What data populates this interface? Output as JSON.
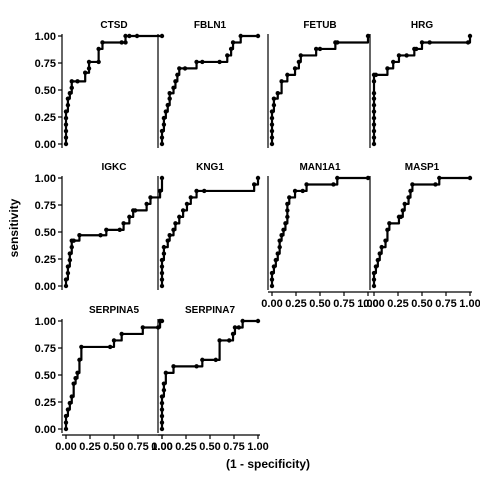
{
  "chart_data": {
    "type": "line",
    "xlabel": "(1 - specificity)",
    "ylabel": "sensitivity",
    "xlim": [
      0,
      1
    ],
    "ylim": [
      0,
      1
    ],
    "x_ticks": [
      0,
      0.25,
      0.5,
      0.75,
      1
    ],
    "x_tick_labels": [
      "0.00",
      "0.25",
      "0.50",
      "0.75",
      "1.00"
    ],
    "y_ticks": [
      0,
      0.25,
      0.5,
      0.75,
      1
    ],
    "y_tick_labels": [
      "0.00",
      "0.25",
      "0.50",
      "0.75",
      "1.00"
    ],
    "point_marker": "filled-circle",
    "line_color": "#000000",
    "panels": [
      {
        "title": "CTSD",
        "x": [
          0,
          0,
          0,
          0,
          0,
          0,
          0.02,
          0.02,
          0.04,
          0.06,
          0.06,
          0.12,
          0.2,
          0.24,
          0.24,
          0.34,
          0.34,
          0.38,
          0.58,
          0.62,
          0.62,
          0.66,
          0.74,
          1
        ],
        "y": [
          0,
          0.06,
          0.12,
          0.18,
          0.24,
          0.3,
          0.36,
          0.42,
          0.47,
          0.52,
          0.58,
          0.58,
          0.66,
          0.7,
          0.76,
          0.76,
          0.88,
          0.94,
          0.94,
          0.94,
          1,
          1,
          1,
          1
        ]
      },
      {
        "title": "FBLN1",
        "x": [
          0,
          0,
          0,
          0.02,
          0.02,
          0.04,
          0.06,
          0.08,
          0.08,
          0.12,
          0.14,
          0.16,
          0.18,
          0.24,
          0.36,
          0.42,
          0.6,
          0.68,
          0.72,
          0.74,
          0.82,
          1
        ],
        "y": [
          0,
          0.06,
          0.12,
          0.18,
          0.24,
          0.3,
          0.36,
          0.42,
          0.47,
          0.52,
          0.58,
          0.64,
          0.7,
          0.7,
          0.76,
          0.76,
          0.76,
          0.82,
          0.88,
          0.94,
          1,
          1
        ]
      },
      {
        "title": "FETUB",
        "x": [
          0,
          0,
          0,
          0,
          0,
          0,
          0.02,
          0.02,
          0.06,
          0.1,
          0.16,
          0.24,
          0.28,
          0.3,
          0.46,
          0.5,
          0.66,
          0.68,
          1
        ],
        "y": [
          0,
          0.06,
          0.12,
          0.18,
          0.24,
          0.3,
          0.36,
          0.42,
          0.47,
          0.58,
          0.64,
          0.7,
          0.76,
          0.82,
          0.88,
          0.88,
          0.94,
          0.94,
          1
        ]
      },
      {
        "title": "HRG",
        "x": [
          0,
          0,
          0,
          0,
          0,
          0,
          0,
          0,
          0,
          0,
          0,
          0.02,
          0.14,
          0.2,
          0.26,
          0.34,
          0.42,
          0.44,
          0.5,
          0.58,
          0.98,
          1
        ],
        "y": [
          0,
          0.06,
          0.12,
          0.18,
          0.24,
          0.3,
          0.36,
          0.42,
          0.47,
          0.58,
          0.64,
          0.64,
          0.7,
          0.76,
          0.82,
          0.82,
          0.88,
          0.88,
          0.94,
          0.94,
          0.94,
          1
        ]
      },
      {
        "title": "IGKC",
        "x": [
          0,
          0,
          0.02,
          0.02,
          0.04,
          0.04,
          0.06,
          0.06,
          0.08,
          0.14,
          0.36,
          0.42,
          0.56,
          0.6,
          0.66,
          0.7,
          0.72,
          0.84,
          0.88,
          0.98,
          1
        ],
        "y": [
          0,
          0.06,
          0.12,
          0.18,
          0.24,
          0.3,
          0.36,
          0.42,
          0.42,
          0.47,
          0.47,
          0.52,
          0.52,
          0.58,
          0.64,
          0.7,
          0.7,
          0.76,
          0.82,
          0.88,
          1
        ]
      },
      {
        "title": "KNG1",
        "x": [
          0,
          0,
          0,
          0,
          0,
          0.02,
          0.02,
          0.06,
          0.08,
          0.12,
          0.14,
          0.18,
          0.22,
          0.26,
          0.3,
          0.36,
          0.44,
          0.96,
          1
        ],
        "y": [
          0,
          0.06,
          0.12,
          0.18,
          0.24,
          0.3,
          0.36,
          0.42,
          0.47,
          0.52,
          0.58,
          0.64,
          0.7,
          0.76,
          0.82,
          0.88,
          0.88,
          0.94,
          1
        ]
      },
      {
        "title": "MAN1A1",
        "x": [
          0,
          0,
          0,
          0.02,
          0.04,
          0.06,
          0.08,
          0.08,
          0.1,
          0.12,
          0.14,
          0.16,
          0.16,
          0.16,
          0.18,
          0.24,
          0.32,
          0.36,
          0.64,
          0.68,
          1
        ],
        "y": [
          0,
          0.06,
          0.12,
          0.18,
          0.24,
          0.3,
          0.36,
          0.42,
          0.47,
          0.52,
          0.58,
          0.64,
          0.7,
          0.76,
          0.82,
          0.88,
          0.88,
          0.94,
          0.94,
          1,
          1
        ]
      },
      {
        "title": "MASP1",
        "x": [
          0,
          0,
          0,
          0.02,
          0.04,
          0.06,
          0.08,
          0.12,
          0.14,
          0.16,
          0.26,
          0.28,
          0.3,
          0.32,
          0.36,
          0.38,
          0.4,
          0.64,
          0.68,
          1
        ],
        "y": [
          0,
          0.06,
          0.12,
          0.18,
          0.24,
          0.3,
          0.36,
          0.42,
          0.52,
          0.58,
          0.64,
          0.64,
          0.7,
          0.76,
          0.82,
          0.88,
          0.94,
          0.94,
          1,
          1
        ]
      },
      {
        "title": "SERPINA5",
        "x": [
          0,
          0,
          0,
          0.02,
          0.04,
          0.06,
          0.08,
          0.1,
          0.12,
          0.14,
          0.16,
          0.46,
          0.5,
          0.58,
          0.8,
          0.96,
          0.98,
          1
        ],
        "y": [
          0,
          0.06,
          0.12,
          0.18,
          0.24,
          0.3,
          0.42,
          0.47,
          0.52,
          0.64,
          0.76,
          0.76,
          0.82,
          0.88,
          0.94,
          0.94,
          1,
          1
        ]
      },
      {
        "title": "SERPINA7",
        "x": [
          0,
          0,
          0,
          0,
          0,
          0,
          0.02,
          0.02,
          0.04,
          0.12,
          0.36,
          0.42,
          0.56,
          0.6,
          0.7,
          0.74,
          0.76,
          0.8,
          0.84,
          1
        ],
        "y": [
          0,
          0.06,
          0.12,
          0.18,
          0.24,
          0.3,
          0.36,
          0.42,
          0.52,
          0.58,
          0.58,
          0.64,
          0.64,
          0.82,
          0.82,
          0.88,
          0.94,
          0.94,
          1,
          1
        ]
      }
    ]
  }
}
